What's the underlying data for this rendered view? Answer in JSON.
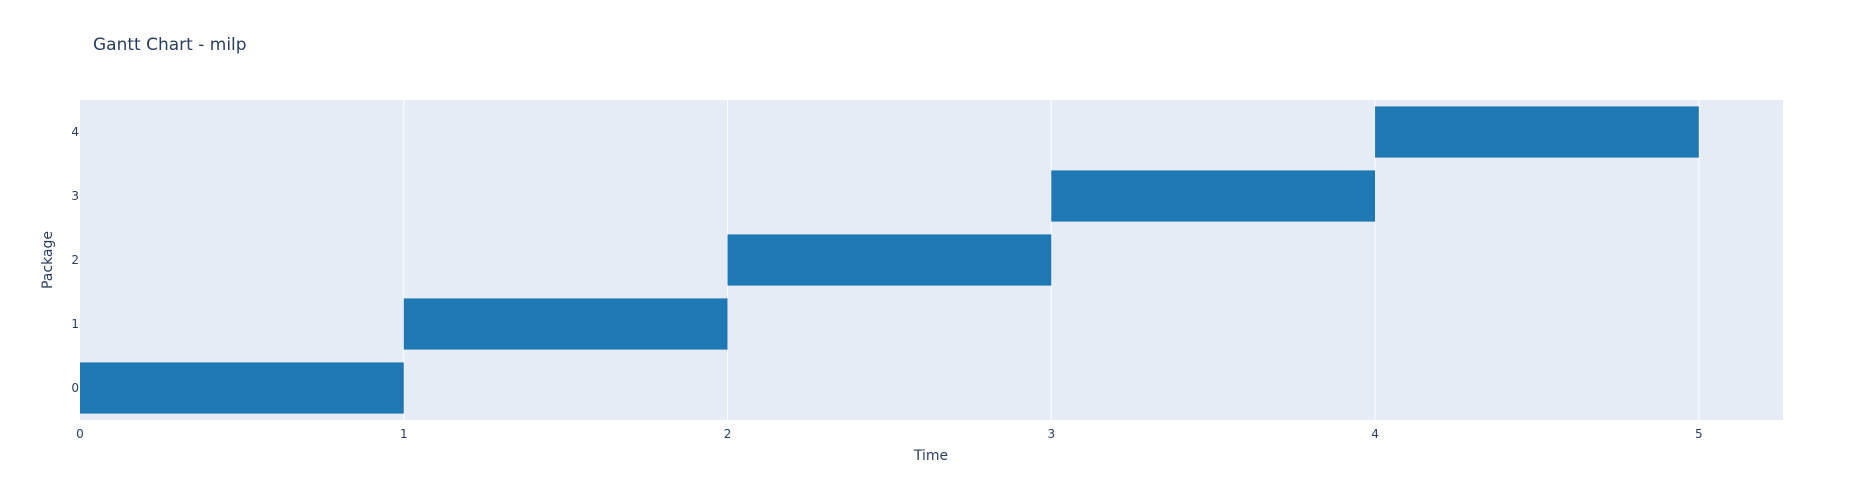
{
  "chart_data": {
    "type": "bar",
    "orientation": "horizontal",
    "title": "Gantt Chart - milp",
    "xlabel": "Time",
    "ylabel": "Package",
    "xlim": [
      0,
      5.26
    ],
    "ylim": [
      -0.5,
      4.5
    ],
    "x_ticks": [
      0,
      1,
      2,
      3,
      4,
      5
    ],
    "y_ticks": [
      0,
      1,
      2,
      3,
      4
    ],
    "grid": true,
    "legend": "none",
    "bar_color": "#1f77b4",
    "plot_bgcolor": "#e5ecf6",
    "grid_color": "#ffffff",
    "tasks": [
      {
        "package": 0,
        "start": 0,
        "end": 1
      },
      {
        "package": 1,
        "start": 1,
        "end": 2
      },
      {
        "package": 2,
        "start": 2,
        "end": 3
      },
      {
        "package": 3,
        "start": 3,
        "end": 4
      },
      {
        "package": 4,
        "start": 4,
        "end": 5
      }
    ]
  }
}
